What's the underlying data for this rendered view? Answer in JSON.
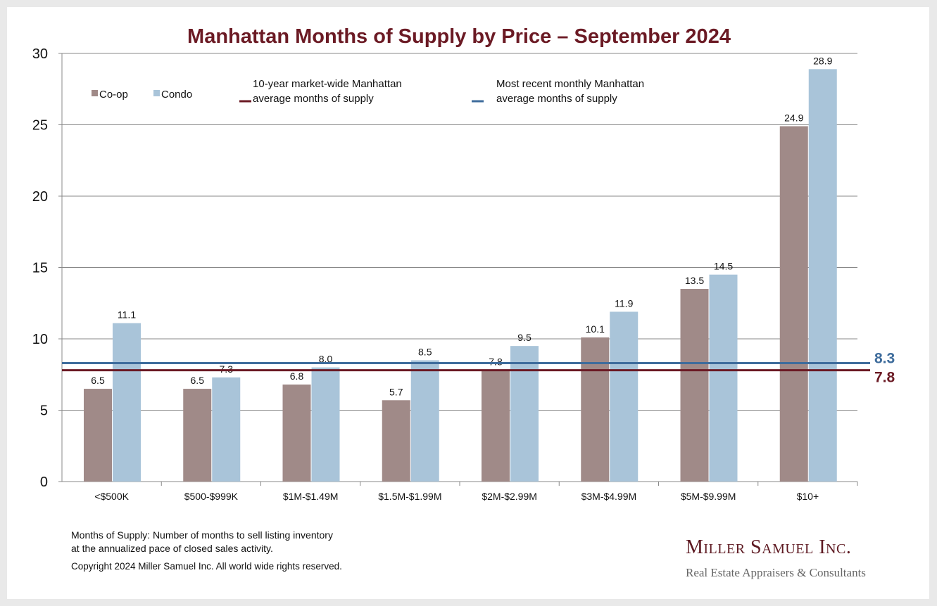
{
  "chart_data": {
    "type": "bar",
    "title": "Manhattan Months of Supply by Price – September 2024",
    "xlabel": "",
    "ylabel": "",
    "ylim": [
      0,
      30
    ],
    "yticks": [
      "0",
      "5",
      "10",
      "15",
      "20",
      "25",
      "30"
    ],
    "grid": true,
    "categories": [
      "<$500K",
      "$500-$999K",
      "$1M-$1.49M",
      "$1.5M-$1.99M",
      "$2M-$2.99M",
      "$3M-$4.99M",
      "$5M-$9.99M",
      "$10+"
    ],
    "series": [
      {
        "name": "Co-op",
        "color": "#a08a88",
        "values": [
          6.5,
          6.5,
          6.8,
          5.7,
          7.8,
          10.1,
          13.5,
          24.9
        ],
        "labels": [
          "6.5",
          "6.5",
          "6.8",
          "5.7",
          "7.8",
          "10.1",
          "13.5",
          "24.9"
        ]
      },
      {
        "name": "Condo",
        "color": "#a9c4d9",
        "values": [
          11.1,
          7.3,
          8.0,
          8.5,
          9.5,
          11.9,
          14.5,
          28.9
        ],
        "labels": [
          "11.1",
          "7.3",
          "8.0",
          "8.5",
          "9.5",
          "11.9",
          "14.5",
          "28.9"
        ]
      }
    ],
    "reference_lines": [
      {
        "name": "10-year market-wide Manhattan average months of supply",
        "line1": "10-year market-wide Manhattan",
        "line2": "average months of supply",
        "value": 7.8,
        "label": "7.8",
        "color": "#6b1a24"
      },
      {
        "name": "Most recent monthly Manhattan average months of supply",
        "line1": "Most recent monthly Manhattan",
        "line2": "average months of supply",
        "value": 8.3,
        "label": "8.3",
        "color": "#3e6c9c"
      }
    ],
    "legend_position": "top-left"
  },
  "notes": {
    "definition_line1": "Months of Supply: Number of months to sell listing inventory",
    "definition_line2": "at the annualized pace of closed sales activity.",
    "copyright": "Copyright 2024 Miller Samuel Inc.  All world wide rights reserved."
  },
  "logo": {
    "name": "Miller Samuel Inc.",
    "tagline": "Real Estate Appraisers & Consultants"
  }
}
